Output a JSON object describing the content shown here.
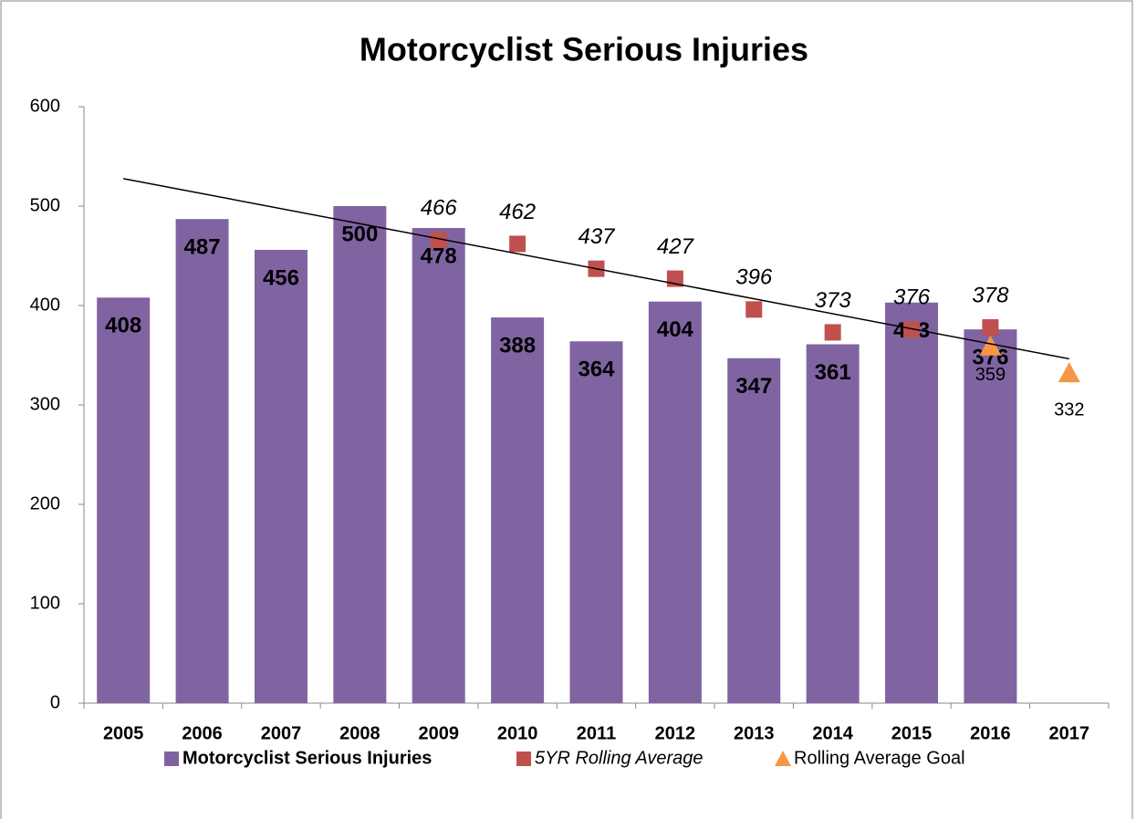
{
  "chart_data": {
    "type": "bar",
    "title": "Motorcyclist Serious Injuries",
    "categories": [
      "2005",
      "2006",
      "2007",
      "2008",
      "2009",
      "2010",
      "2011",
      "2012",
      "2013",
      "2014",
      "2015",
      "2016",
      "2017"
    ],
    "series": [
      {
        "name": "Motorcyclist Serious Injuries",
        "type": "bar",
        "color": "#8064a2",
        "values": [
          408,
          487,
          456,
          500,
          478,
          388,
          364,
          404,
          347,
          361,
          403,
          376,
          null
        ]
      },
      {
        "name": "5YR Rolling Average",
        "type": "square",
        "color": "#c0504d",
        "trendline": true,
        "values": [
          null,
          null,
          null,
          null,
          466,
          462,
          437,
          427,
          396,
          373,
          376,
          378,
          null
        ]
      },
      {
        "name": "Rolling Average Goal",
        "type": "triangle",
        "color": "#f79646",
        "values": [
          null,
          null,
          null,
          null,
          null,
          null,
          null,
          null,
          null,
          null,
          null,
          359,
          332
        ]
      }
    ],
    "ylim": [
      0,
      600
    ],
    "yticks": [
      0,
      100,
      200,
      300,
      400,
      500,
      600
    ],
    "grid": false,
    "legend": "bottom"
  }
}
